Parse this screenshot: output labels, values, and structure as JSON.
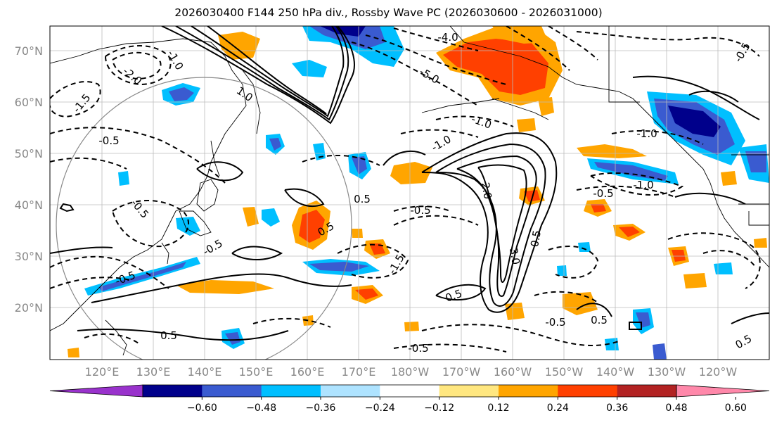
{
  "title": "2026030400 F144 250 hPa div., Rossby Wave PC (2026030600 - 2026031000)",
  "lat_labels": [
    "70°N",
    "60°N",
    "50°N",
    "40°N",
    "30°N",
    "20°N"
  ],
  "lon_labels": [
    "120°E",
    "130°E",
    "140°E",
    "150°E",
    "160°E",
    "170°E",
    "180°W",
    "170°W",
    "160°W",
    "150°W",
    "140°W",
    "130°W",
    "120°W"
  ],
  "contour_labels": [
    "-4.0",
    "-2.0",
    "-1.5",
    "-1.0",
    "-0.5",
    "-0.5",
    "-0.5",
    "-0.5",
    "-1.0",
    "-1.0",
    "-1.0",
    "-0.5",
    "-1.5",
    "-0.5",
    "0.5",
    "0.5",
    "0.5",
    "0.5",
    "0.5",
    "1.0",
    "0.5",
    "0.5",
    "2.0",
    "3.0",
    "-0.5",
    "-0.5",
    "-1.0",
    "-5.0",
    "-0.5"
  ],
  "colorbar": {
    "tick_labels": [
      "−0.60",
      "−0.48",
      "−0.36",
      "−0.24",
      "−0.12",
      "0.12",
      "0.24",
      "0.36",
      "0.48",
      "0.60"
    ],
    "colors": [
      "#9932cc",
      "#00008b",
      "#3a5bd0",
      "#00bfff",
      "#aee3ff",
      "#ffffff",
      "#ffe780",
      "#ffa500",
      "#ff4000",
      "#b22222",
      "#ff88aa"
    ]
  },
  "colors": {
    "dark_blue": "#00008b",
    "mid_blue": "#3a5bd0",
    "cyan": "#00bfff",
    "light_cyan": "#aee3ff",
    "yellow": "#ffe780",
    "orange": "#ffa500",
    "red_orange": "#ff4000",
    "grid": "#bbbbbb",
    "circle": "#888888"
  }
}
